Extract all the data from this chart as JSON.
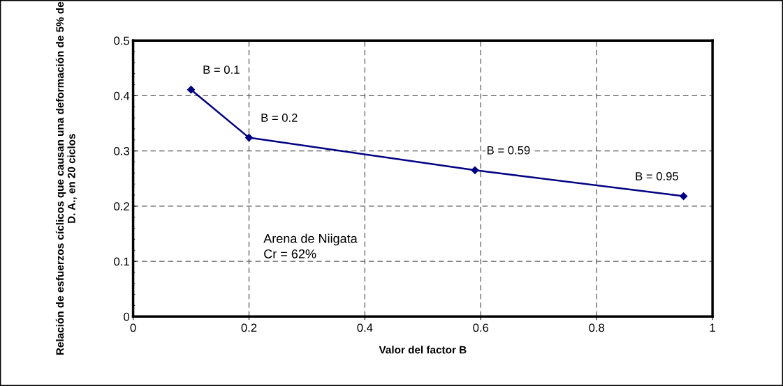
{
  "chart_data": {
    "type": "line",
    "xlabel": "Valor del factor B",
    "ylabel": "Relación de esfuerzos cíclicos que causan una deformación de 5% de D. A., en 20 ciclos",
    "x": [
      0.1,
      0.2,
      0.59,
      0.95
    ],
    "series": [
      {
        "color": "#000080",
        "values": [
          0.411,
          0.324,
          0.265,
          0.218
        ]
      }
    ],
    "marker": "diamond",
    "line_style": "solid",
    "xlim": [
      0,
      1
    ],
    "xticks": [
      0,
      0.2,
      0.4,
      0.6,
      0.8,
      1
    ],
    "ylim": [
      0,
      0.5
    ],
    "yticks": [
      0,
      0.1,
      0.2,
      0.3,
      0.4,
      0.5
    ],
    "grid": true,
    "annotations": [
      {
        "text": "B = 0.1",
        "x": 0.1,
        "y": 0.411
      },
      {
        "text": "B = 0.2",
        "x": 0.2,
        "y": 0.324
      },
      {
        "text": "B = 0.59",
        "x": 0.59,
        "y": 0.265
      },
      {
        "text": "B = 0.95",
        "x": 0.95,
        "y": 0.218
      },
      "Arena de Niigata\nCr = 62%"
    ]
  }
}
